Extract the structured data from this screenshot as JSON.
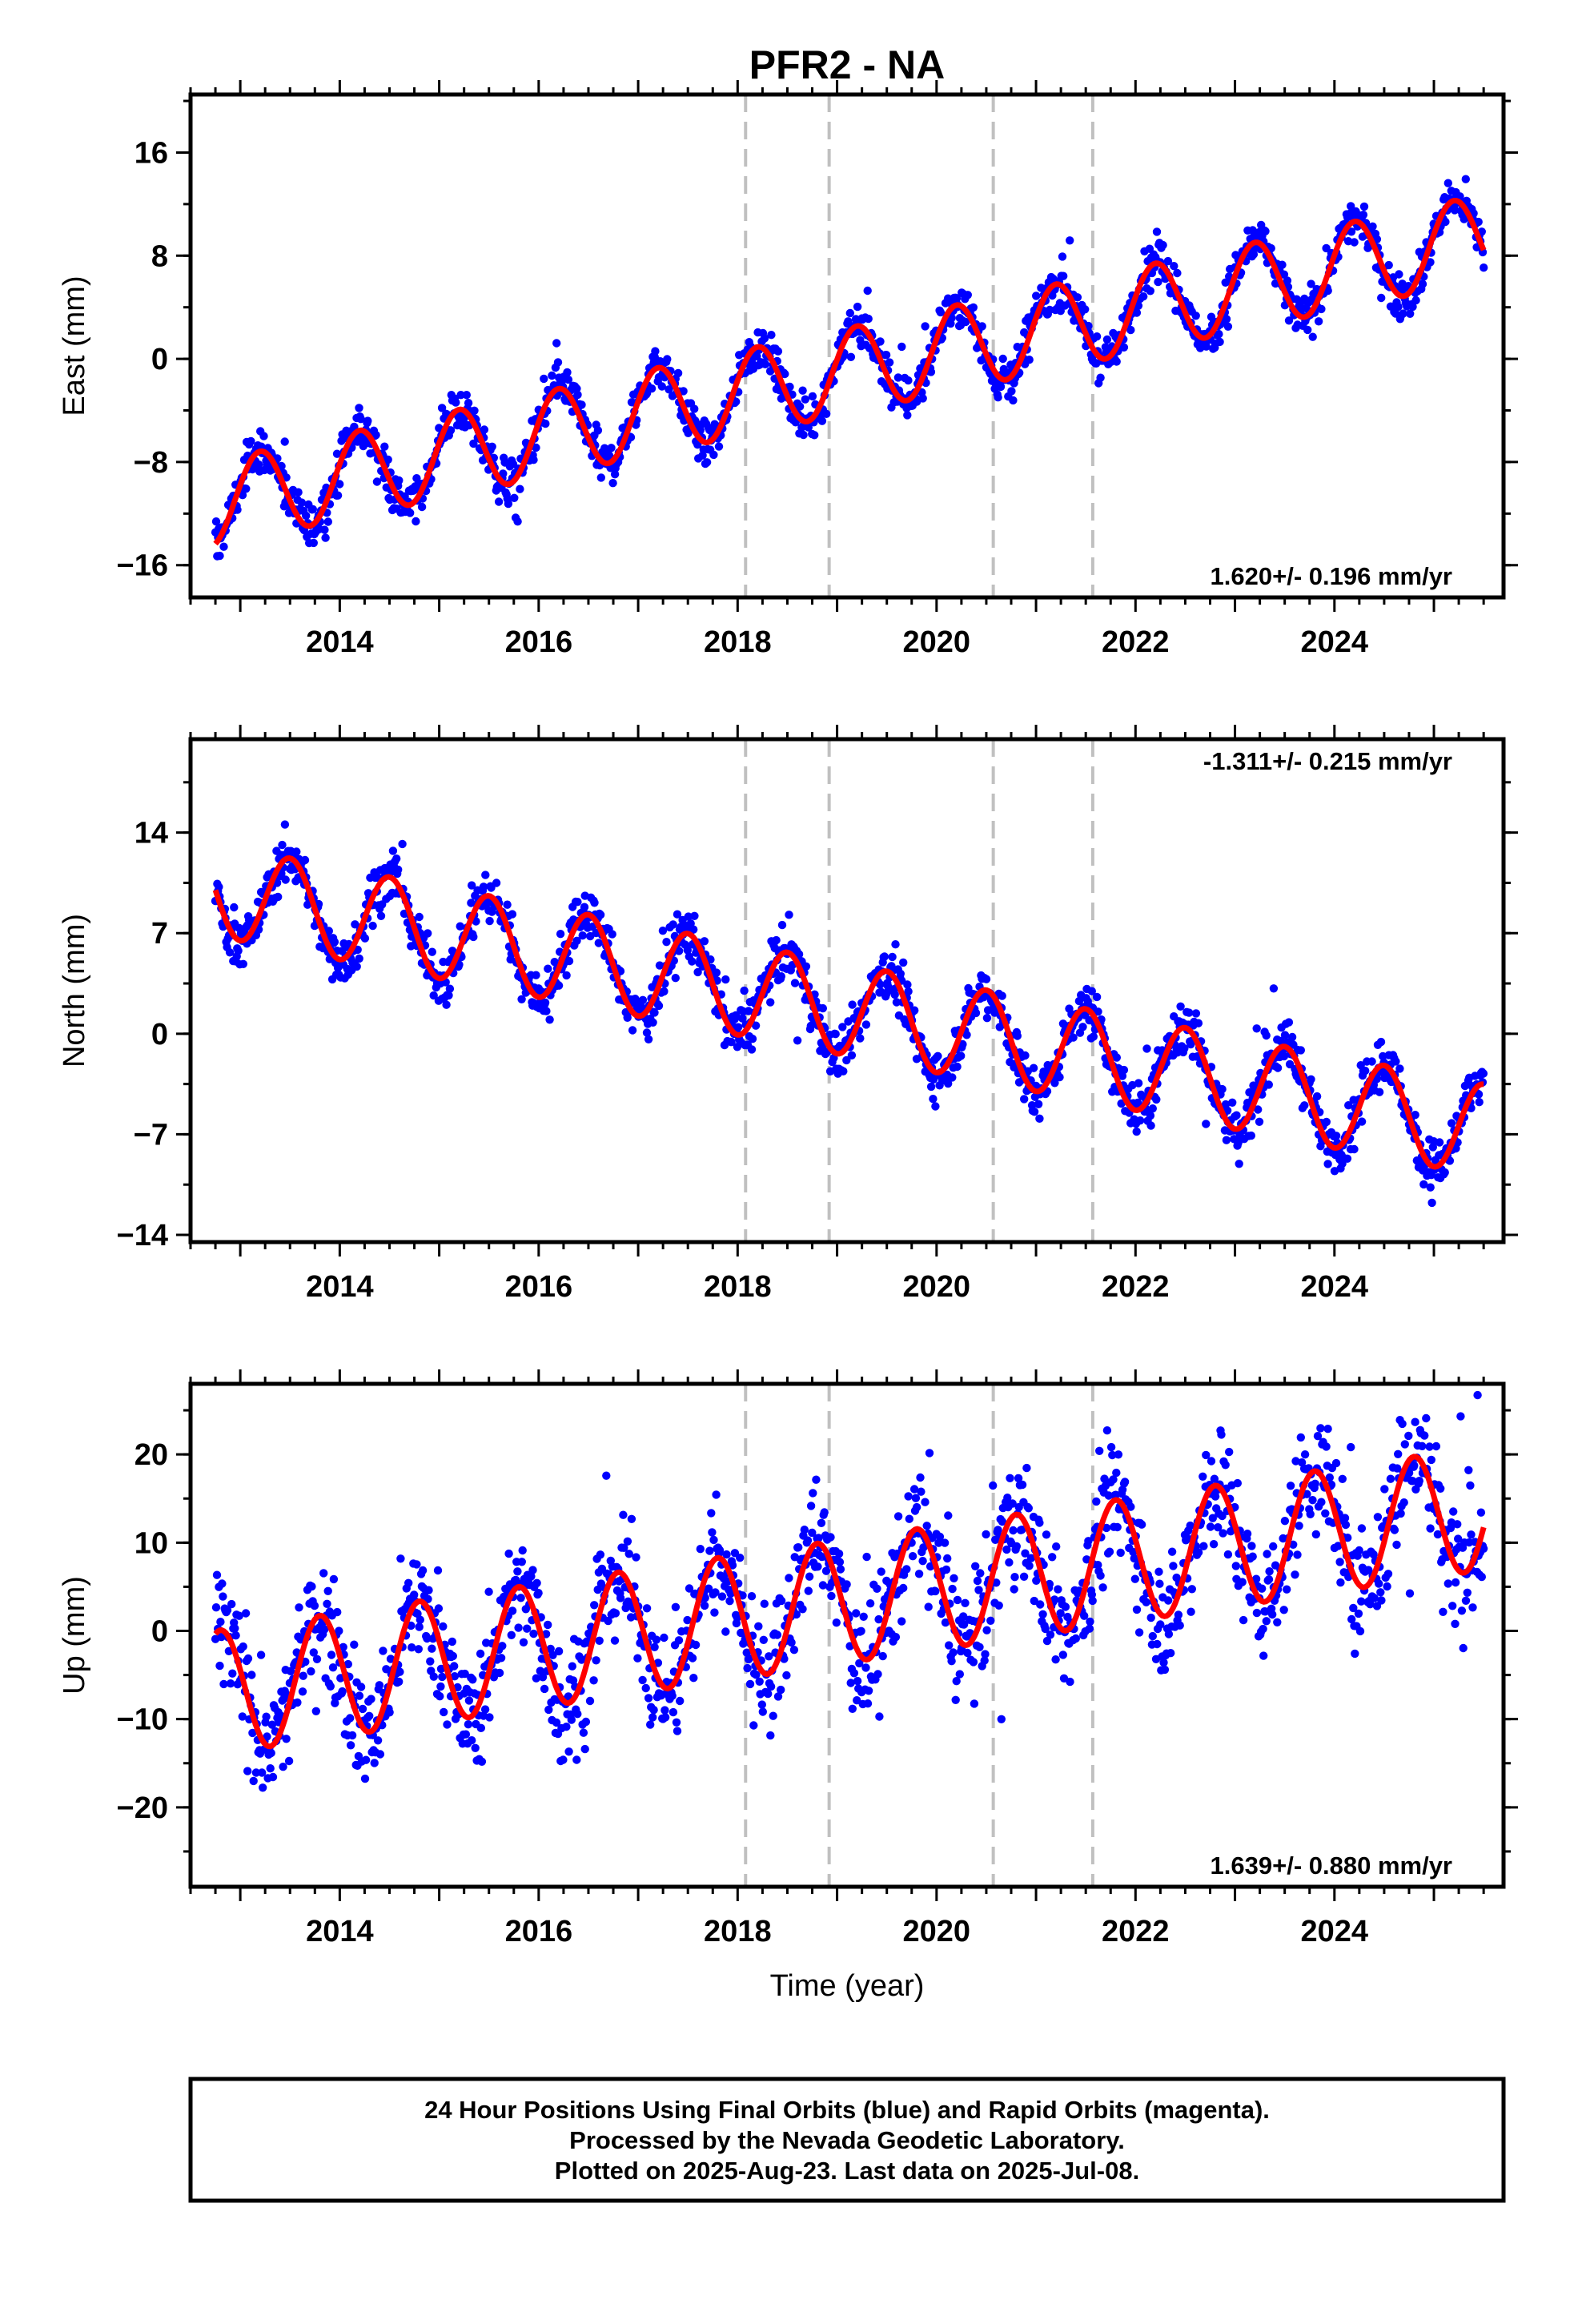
{
  "chart_data": [
    {
      "type": "scatter",
      "title": "PFR2 - NA",
      "ylabel": "East (mm)",
      "xlabel": "",
      "xlim": [
        2012.5,
        2025.7
      ],
      "ylim": [
        -18.5,
        20.5
      ],
      "yticks": [
        -16,
        -8,
        0,
        8,
        16
      ],
      "xticks": [
        2014,
        2016,
        2018,
        2020,
        2022,
        2024
      ],
      "rate_text": "1.620+/- 0.196 mm/yr",
      "rate_position": "bottom-right",
      "grid": false,
      "series": [],
      "model": {
        "start": 2012.75,
        "end": 2025.5,
        "intercept": -11.2,
        "slope": 1.62,
        "amplitude": 3.3,
        "phase_year": 2012.95
      },
      "scatter_spread": 1.5,
      "offset_epochs": [
        2018.08,
        2018.92,
        2020.57,
        2021.57
      ],
      "colors": {
        "points": "#0000ff",
        "model": "#ff0000",
        "offsets": "#c0c0c0"
      }
    },
    {
      "type": "scatter",
      "title": "",
      "ylabel": "North (mm)",
      "xlabel": "",
      "xlim": [
        2012.5,
        2025.7
      ],
      "ylim": [
        -14.5,
        20.5
      ],
      "yticks": [
        -14,
        -7,
        0,
        7,
        14
      ],
      "xticks": [
        2014,
        2016,
        2018,
        2020,
        2022,
        2024
      ],
      "rate_text": "-1.311+/- 0.215 mm/yr",
      "rate_position": "top-right",
      "grid": false,
      "series": [],
      "model": {
        "start": 2012.75,
        "end": 2025.5,
        "intercept": 10.0,
        "slope": -1.311,
        "amplitude": 3.2,
        "phase_year": 2013.25
      },
      "scatter_spread": 1.6,
      "offset_epochs": [
        2018.08,
        2018.92,
        2020.57,
        2021.57
      ],
      "colors": {
        "points": "#0000ff",
        "model": "#ff0000",
        "offsets": "#c0c0c0"
      }
    },
    {
      "type": "scatter",
      "title": "",
      "ylabel": "Up (mm)",
      "xlabel": "Time (year)",
      "xlim": [
        2012.5,
        2025.7
      ],
      "ylim": [
        -29,
        28
      ],
      "yticks": [
        -20,
        -10,
        0,
        10,
        20
      ],
      "xticks": [
        2014,
        2016,
        2018,
        2020,
        2022,
        2024
      ],
      "rate_text": "1.639+/- 0.880 mm/yr",
      "rate_position": "bottom-right",
      "grid": false,
      "series": [],
      "model": {
        "start": 2012.75,
        "end": 2025.5,
        "intercept": -7.0,
        "slope": 1.639,
        "amplitude": 7.0,
        "phase_year": 2012.55
      },
      "scatter_spread": 6.0,
      "offset_epochs": [
        2018.08,
        2018.92,
        2020.57,
        2021.57
      ],
      "colors": {
        "points": "#0000ff",
        "model": "#ff0000",
        "offsets": "#c0c0c0"
      }
    }
  ],
  "footer": {
    "line1": "24 Hour Positions Using Final Orbits (blue) and Rapid Orbits (magenta).",
    "line2": "Processed by the Nevada Geodetic Laboratory.",
    "line3": "Plotted on 2025-Aug-23. Last data on 2025-Jul-08."
  }
}
